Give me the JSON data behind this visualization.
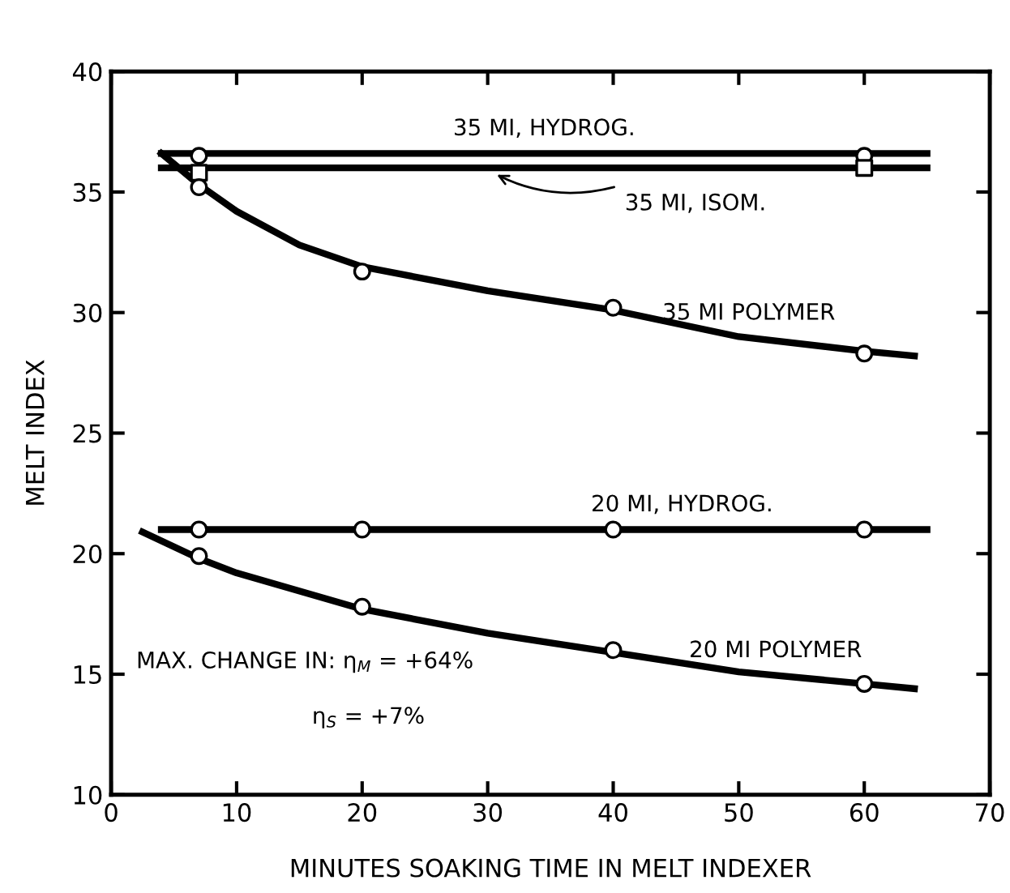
{
  "chart_data": {
    "type": "line",
    "xlabel": "MINUTES SOAKING TIME IN MELT INDEXER",
    "ylabel": "MELT INDEX",
    "xlim": [
      0,
      70
    ],
    "ylim": [
      10,
      40
    ],
    "xticks": [
      0,
      10,
      20,
      30,
      40,
      50,
      60,
      70
    ],
    "yticks": [
      10,
      15,
      20,
      25,
      30,
      35,
      40
    ],
    "grid": false,
    "legend": false,
    "line_style": "solid",
    "marker": "none",
    "series": [
      {
        "name": "35 MI, HYDROG.",
        "color": "#000000",
        "x": [
          4,
          65
        ],
        "values": [
          36.6,
          36.6
        ]
      },
      {
        "type": "scatter",
        "marker": "circle",
        "color": "#000000",
        "x": [
          7,
          60
        ],
        "values": [
          36.5,
          36.5
        ]
      },
      {
        "name": "35 MI, ISOM.",
        "color": "#000000",
        "x": [
          4,
          65
        ],
        "values": [
          36.0,
          36.0
        ]
      },
      {
        "type": "scatter",
        "marker": "square",
        "color": "#000000",
        "x": [
          7,
          60
        ],
        "values": [
          35.8,
          36.0
        ]
      },
      {
        "name": "35 MI POLYMER",
        "color": "#000000",
        "x": [
          4,
          7,
          10,
          15,
          20,
          30,
          40,
          50,
          60,
          64
        ],
        "values": [
          36.6,
          35.3,
          34.2,
          32.8,
          31.9,
          30.9,
          30.1,
          29.0,
          28.4,
          28.2
        ]
      },
      {
        "type": "scatter",
        "marker": "circle",
        "color": "#000000",
        "x": [
          7,
          20,
          40,
          60
        ],
        "values": [
          35.2,
          31.7,
          30.2,
          28.3
        ]
      },
      {
        "name": "20 MI, HYDROG.",
        "color": "#000000",
        "x": [
          4,
          65
        ],
        "values": [
          21.0,
          21.0
        ]
      },
      {
        "type": "scatter",
        "marker": "circle",
        "color": "#000000",
        "x": [
          7,
          20,
          40,
          60
        ],
        "values": [
          21.0,
          21.0,
          21.0,
          21.0
        ]
      },
      {
        "name": "20 MI POLYMER",
        "color": "#000000",
        "x": [
          2.5,
          7,
          10,
          20,
          30,
          40,
          50,
          60,
          64
        ],
        "values": [
          20.9,
          19.8,
          19.2,
          17.7,
          16.7,
          15.9,
          15.1,
          14.6,
          14.4
        ]
      },
      {
        "type": "scatter",
        "marker": "circle",
        "color": "#000000",
        "x": [
          7,
          20,
          40,
          60
        ],
        "values": [
          19.9,
          17.8,
          16.0,
          14.6
        ]
      }
    ],
    "annotations": [
      "MAX. CHANGE IN: η$_{M}$ = +64%",
      "η$_{S}$ = +7%"
    ]
  }
}
